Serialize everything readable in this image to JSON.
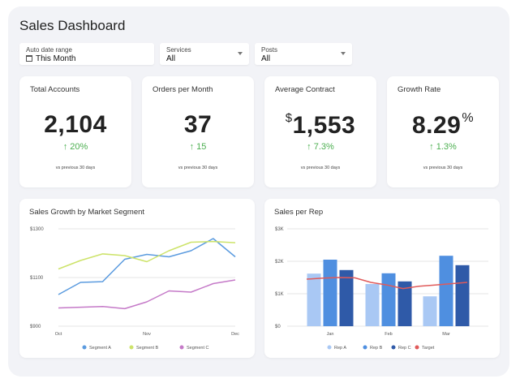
{
  "title": "Sales Dashboard",
  "filters": [
    {
      "label": "Auto date range",
      "value": "This Month",
      "icon": "calendar-icon"
    },
    {
      "label": "Services",
      "value": "All",
      "icon": "chevron-down-icon"
    },
    {
      "label": "Posts",
      "value": "All",
      "icon": "chevron-down-icon"
    }
  ],
  "kpis": [
    {
      "title": "Total Accounts",
      "value": "2,104",
      "prefix": "",
      "suffix": "",
      "delta": "↑ 20%",
      "note": "vs previous 30 days"
    },
    {
      "title": "Orders per Month",
      "value": "37",
      "prefix": "",
      "suffix": "",
      "delta": "↑ 15",
      "note": "vs previous 30 days"
    },
    {
      "title": "Average Contract",
      "value": "1,553",
      "prefix": "$",
      "suffix": "",
      "delta": "↑ 7.3%",
      "note": "vs previous 30 days"
    },
    {
      "title": "Growth Rate",
      "value": "8.29",
      "prefix": "",
      "suffix": "%",
      "delta": "↑ 1.3%",
      "note": "vs previous 30 days"
    }
  ],
  "colors": {
    "up": "#4caf50",
    "segA": "#5b9bdf",
    "segB": "#cde36a",
    "segC": "#c57ac8",
    "repA": "#a9c8f4",
    "repB": "#4f8fe0",
    "repC": "#2f5aa8",
    "target": "#e05a5a"
  },
  "chart_data": [
    {
      "type": "line",
      "title": "Sales Growth by Market Segment",
      "x_ticks": [
        "Oct",
        "Nov",
        "Dec"
      ],
      "y_ticks": [
        "$900",
        "$1100",
        "$1300"
      ],
      "ylim": [
        900,
        1300
      ],
      "grid": true,
      "legend_position": "bottom",
      "series": [
        {
          "name": "Segment A",
          "color": "#5b9bdf",
          "values": [
            1030,
            1080,
            1083,
            1175,
            1195,
            1185,
            1210,
            1260,
            1185
          ]
        },
        {
          "name": "Segment B",
          "color": "#cde36a",
          "values": [
            1135,
            1170,
            1197,
            1190,
            1165,
            1210,
            1245,
            1248,
            1243
          ]
        },
        {
          "name": "Segment C",
          "color": "#c57ac8",
          "values": [
            975,
            978,
            981,
            972,
            1000,
            1045,
            1040,
            1075,
            1090
          ]
        }
      ]
    },
    {
      "type": "bar",
      "title": "Sales per Rep",
      "categories": [
        "Jan",
        "Feb",
        "Mar"
      ],
      "y_ticks": [
        "$0",
        "$1K",
        "$2K",
        "$3K"
      ],
      "ylim": [
        0,
        3000
      ],
      "grid": true,
      "legend_position": "bottom",
      "series": [
        {
          "name": "Rep A",
          "color": "#a9c8f4",
          "values": [
            1620,
            1300,
            920
          ]
        },
        {
          "name": "Rep B",
          "color": "#4f8fe0",
          "values": [
            2050,
            1630,
            2170
          ]
        },
        {
          "name": "Rep C",
          "color": "#2f5aa8",
          "values": [
            1730,
            1380,
            1880
          ]
        }
      ],
      "line_series": {
        "name": "Target",
        "color": "#e05a5a",
        "values": [
          1450,
          1480,
          1500,
          1490,
          1350,
          1270,
          1160,
          1230,
          1270,
          1310,
          1350
        ]
      }
    }
  ]
}
